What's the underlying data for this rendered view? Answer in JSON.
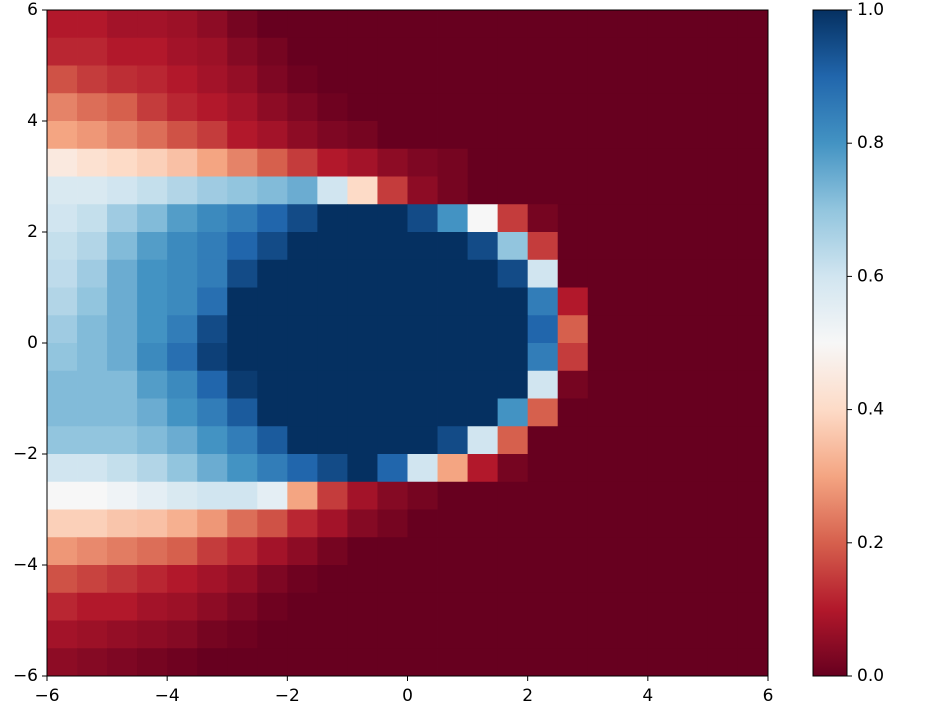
{
  "chart_data": {
    "type": "heatmap",
    "xlim": [
      -6,
      6
    ],
    "ylim": [
      -6,
      6
    ],
    "xticks": [
      {
        "value": -6,
        "label": "−6"
      },
      {
        "value": -4,
        "label": "−4"
      },
      {
        "value": -2,
        "label": "−2"
      },
      0,
      2,
      4,
      6
    ],
    "yticks": [
      {
        "value": -6,
        "label": "−6"
      },
      {
        "value": -4,
        "label": "−4"
      },
      {
        "value": -2,
        "label": "−2"
      },
      0,
      2,
      4,
      6
    ],
    "clim": [
      0,
      1
    ],
    "cticks": [
      {
        "value": 0,
        "label": "0.0"
      },
      0.2,
      0.4,
      0.6,
      0.8,
      {
        "value": 1,
        "label": "1.0"
      }
    ],
    "colormap": [
      "#67001f",
      "#b2182b",
      "#d6604d",
      "#f4a582",
      "#fddbc7",
      "#f7f7f7",
      "#d1e5f0",
      "#92c5de",
      "#4393c3",
      "#2166ac",
      "#053061"
    ],
    "x": [
      -5.75,
      -5.25,
      -4.75,
      -4.25,
      -3.75,
      -3.25,
      -2.75,
      -2.25,
      -1.75,
      -1.25,
      -0.75,
      -0.25,
      0.25,
      0.75,
      1.25,
      1.75,
      2.25,
      2.75,
      3.25,
      3.75,
      4.25,
      4.75,
      5.25,
      5.75
    ],
    "y": [
      5.75,
      5.25,
      4.75,
      4.25,
      3.75,
      3.25,
      2.75,
      2.25,
      1.75,
      1.25,
      0.75,
      0.25,
      -0.25,
      -0.75,
      -1.25,
      -1.75,
      -2.25,
      -2.75,
      -3.25,
      -3.75,
      -4.25,
      -4.75,
      -5.25,
      -5.75
    ],
    "values": [
      [
        0.1,
        0.1,
        0.08,
        0.08,
        0.07,
        0.05,
        0.02,
        0,
        0,
        0,
        0,
        0,
        0,
        0,
        0,
        0,
        0,
        0,
        0,
        0,
        0,
        0,
        0,
        0
      ],
      [
        0.12,
        0.12,
        0.1,
        0.1,
        0.08,
        0.07,
        0.04,
        0.02,
        0,
        0,
        0,
        0,
        0,
        0,
        0,
        0,
        0,
        0,
        0,
        0,
        0,
        0,
        0,
        0
      ],
      [
        0.18,
        0.15,
        0.13,
        0.12,
        0.1,
        0.08,
        0.06,
        0.03,
        0.01,
        0,
        0,
        0,
        0,
        0,
        0,
        0,
        0,
        0,
        0,
        0,
        0,
        0,
        0,
        0
      ],
      [
        0.25,
        0.22,
        0.2,
        0.15,
        0.12,
        0.1,
        0.08,
        0.05,
        0.03,
        0.01,
        0,
        0,
        0,
        0,
        0,
        0,
        0,
        0,
        0,
        0,
        0,
        0,
        0,
        0
      ],
      [
        0.3,
        0.28,
        0.25,
        0.22,
        0.18,
        0.15,
        0.1,
        0.08,
        0.05,
        0.03,
        0.02,
        0,
        0,
        0,
        0,
        0,
        0,
        0,
        0,
        0,
        0,
        0,
        0,
        0
      ],
      [
        0.45,
        0.42,
        0.4,
        0.38,
        0.35,
        0.3,
        0.25,
        0.2,
        0.15,
        0.1,
        0.08,
        0.05,
        0.03,
        0.02,
        0,
        0,
        0,
        0,
        0,
        0,
        0,
        0,
        0,
        0
      ],
      [
        0.58,
        0.58,
        0.6,
        0.62,
        0.65,
        0.68,
        0.7,
        0.72,
        0.75,
        0.6,
        0.4,
        0.15,
        0.05,
        0.02,
        0,
        0,
        0,
        0,
        0,
        0,
        0,
        0,
        0,
        0
      ],
      [
        0.6,
        0.62,
        0.68,
        0.72,
        0.78,
        0.82,
        0.85,
        0.9,
        0.95,
        1,
        1,
        1,
        0.95,
        0.8,
        0.5,
        0.15,
        0.02,
        0,
        0,
        0,
        0,
        0,
        0,
        0
      ],
      [
        0.62,
        0.65,
        0.72,
        0.78,
        0.82,
        0.85,
        0.9,
        0.95,
        1,
        1,
        1,
        1,
        1,
        1,
        0.95,
        0.7,
        0.15,
        0,
        0,
        0,
        0,
        0,
        0,
        0
      ],
      [
        0.63,
        0.68,
        0.75,
        0.8,
        0.82,
        0.85,
        0.95,
        1,
        1,
        1,
        1,
        1,
        1,
        1,
        1,
        0.95,
        0.6,
        0,
        0,
        0,
        0,
        0,
        0,
        0
      ],
      [
        0.65,
        0.7,
        0.75,
        0.8,
        0.82,
        0.88,
        1,
        1,
        1,
        1,
        1,
        1,
        1,
        1,
        1,
        1,
        0.85,
        0.1,
        0,
        0,
        0,
        0,
        0,
        0
      ],
      [
        0.68,
        0.72,
        0.75,
        0.8,
        0.85,
        0.95,
        1,
        1,
        1,
        1,
        1,
        1,
        1,
        1,
        1,
        1,
        0.9,
        0.2,
        0,
        0,
        0,
        0,
        0,
        0
      ],
      [
        0.7,
        0.72,
        0.75,
        0.82,
        0.88,
        0.97,
        1,
        1,
        1,
        1,
        1,
        1,
        1,
        1,
        1,
        1,
        0.85,
        0.15,
        0,
        0,
        0,
        0,
        0,
        0
      ],
      [
        0.72,
        0.72,
        0.72,
        0.78,
        0.82,
        0.9,
        0.98,
        1,
        1,
        1,
        1,
        1,
        1,
        1,
        1,
        1,
        0.6,
        0.02,
        0,
        0,
        0,
        0,
        0,
        0
      ],
      [
        0.72,
        0.72,
        0.72,
        0.75,
        0.8,
        0.85,
        0.92,
        1,
        1,
        1,
        1,
        1,
        1,
        1,
        1,
        0.8,
        0.2,
        0,
        0,
        0,
        0,
        0,
        0,
        0
      ],
      [
        0.7,
        0.7,
        0.7,
        0.72,
        0.75,
        0.8,
        0.85,
        0.92,
        1,
        1,
        1,
        1,
        1,
        0.95,
        0.6,
        0.2,
        0,
        0,
        0,
        0,
        0,
        0,
        0,
        0
      ],
      [
        0.6,
        0.6,
        0.62,
        0.65,
        0.7,
        0.75,
        0.8,
        0.85,
        0.9,
        0.95,
        1,
        0.9,
        0.6,
        0.3,
        0.1,
        0.02,
        0,
        0,
        0,
        0,
        0,
        0,
        0,
        0
      ],
      [
        0.5,
        0.5,
        0.52,
        0.55,
        0.58,
        0.6,
        0.6,
        0.55,
        0.3,
        0.15,
        0.08,
        0.04,
        0.02,
        0,
        0,
        0,
        0,
        0,
        0,
        0,
        0,
        0,
        0,
        0
      ],
      [
        0.38,
        0.38,
        0.36,
        0.35,
        0.32,
        0.28,
        0.22,
        0.18,
        0.12,
        0.08,
        0.04,
        0.02,
        0,
        0,
        0,
        0,
        0,
        0,
        0,
        0,
        0,
        0,
        0,
        0
      ],
      [
        0.28,
        0.26,
        0.24,
        0.22,
        0.2,
        0.15,
        0.12,
        0.08,
        0.05,
        0.02,
        0,
        0,
        0,
        0,
        0,
        0,
        0,
        0,
        0,
        0,
        0,
        0,
        0,
        0
      ],
      [
        0.18,
        0.16,
        0.14,
        0.12,
        0.1,
        0.08,
        0.06,
        0.03,
        0.01,
        0,
        0,
        0,
        0,
        0,
        0,
        0,
        0,
        0,
        0,
        0,
        0,
        0,
        0,
        0
      ],
      [
        0.12,
        0.1,
        0.1,
        0.08,
        0.07,
        0.05,
        0.03,
        0.01,
        0,
        0,
        0,
        0,
        0,
        0,
        0,
        0,
        0,
        0,
        0,
        0,
        0,
        0,
        0,
        0
      ],
      [
        0.08,
        0.07,
        0.06,
        0.05,
        0.04,
        0.02,
        0.01,
        0,
        0,
        0,
        0,
        0,
        0,
        0,
        0,
        0,
        0,
        0,
        0,
        0,
        0,
        0,
        0,
        0
      ],
      [
        0.05,
        0.04,
        0.03,
        0.02,
        0.01,
        0,
        0,
        0,
        0,
        0,
        0,
        0,
        0,
        0,
        0,
        0,
        0,
        0,
        0,
        0,
        0,
        0,
        0,
        0
      ]
    ]
  }
}
